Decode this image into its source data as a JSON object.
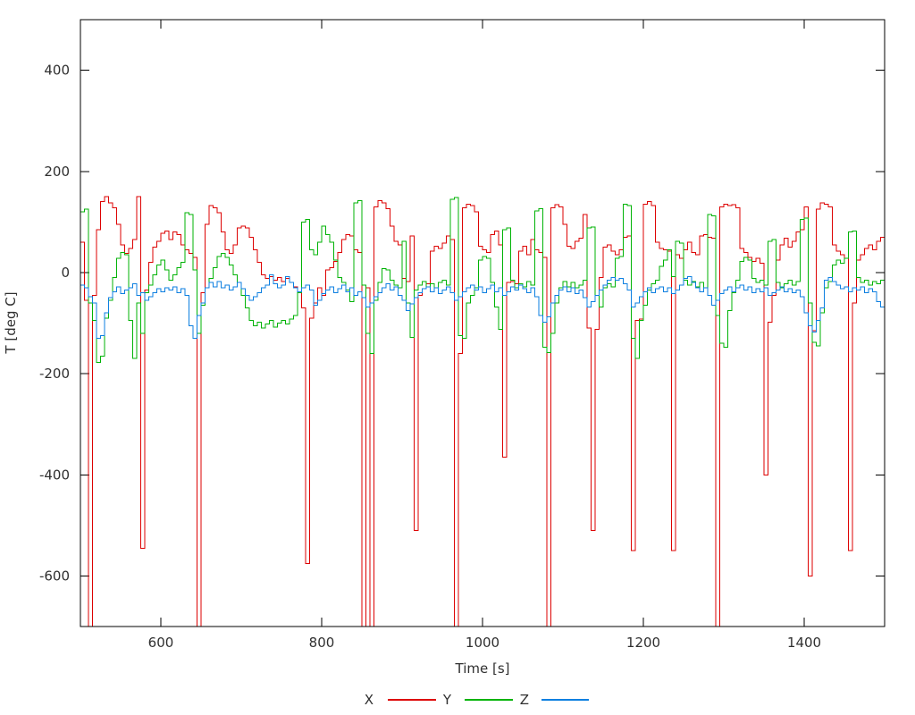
{
  "chart_data": {
    "type": "line",
    "style": "steps",
    "title": "",
    "xlabel": "Time [s]",
    "ylabel": "T [deg C]",
    "xlim": [
      500,
      1500
    ],
    "ylim": [
      -700,
      500
    ],
    "xticks": [
      600,
      800,
      1000,
      1200,
      1400
    ],
    "yticks": [
      -600,
      -400,
      -200,
      0,
      200,
      400
    ],
    "grid": false,
    "legend_position": "bottom-center",
    "background_color": "#ffffff",
    "axis_color": "#000000",
    "text_color": "#303030",
    "x_start": 500,
    "x_step": 5,
    "series": [
      {
        "name": "X",
        "color": "#dd0202",
        "values": [
          60,
          -55,
          -750,
          -45,
          85,
          140,
          150,
          138,
          128,
          95,
          55,
          38,
          48,
          65,
          150,
          -545,
          -35,
          20,
          50,
          62,
          78,
          82,
          65,
          80,
          75,
          55,
          45,
          38,
          30,
          -760,
          -40,
          95,
          132,
          128,
          118,
          80,
          45,
          38,
          55,
          88,
          92,
          88,
          70,
          45,
          20,
          -5,
          -12,
          -8,
          -15,
          -10,
          -18,
          -12,
          -20,
          -28,
          -40,
          -70,
          -575,
          -90,
          -60,
          -30,
          -45,
          5,
          10,
          22,
          40,
          65,
          75,
          72,
          45,
          40,
          -730,
          -30,
          -740,
          130,
          142,
          138,
          126,
          92,
          62,
          55,
          -12,
          -18,
          72,
          -510,
          -45,
          -32,
          -22,
          42,
          52,
          48,
          58,
          72,
          65,
          -720,
          -160,
          128,
          135,
          132,
          120,
          52,
          45,
          40,
          75,
          82,
          55,
          -365,
          -20,
          -18,
          -22,
          42,
          52,
          35,
          65,
          45,
          40,
          30,
          -740,
          128,
          134,
          130,
          95,
          52,
          48,
          62,
          68,
          115,
          -110,
          -510,
          -112,
          -10,
          50,
          55,
          42,
          35,
          45,
          70,
          72,
          -550,
          -95,
          -92,
          135,
          140,
          132,
          60,
          48,
          45,
          42,
          -550,
          35,
          28,
          45,
          60,
          40,
          35,
          72,
          75,
          70,
          68,
          -750,
          130,
          135,
          132,
          134,
          128,
          48,
          40,
          30,
          22,
          28,
          18,
          -400,
          -98,
          -45,
          25,
          55,
          68,
          50,
          62,
          80,
          85,
          130,
          -600,
          -115,
          125,
          138,
          135,
          130,
          55,
          42,
          35,
          28,
          -550,
          -60,
          25,
          35,
          48,
          55,
          45,
          62,
          70,
          75
        ]
      },
      {
        "name": "Y",
        "color": "#00b306",
        "values": [
          120,
          125,
          -60,
          -95,
          -178,
          -165,
          -90,
          -55,
          -10,
          28,
          40,
          35,
          -95,
          -170,
          -60,
          -120,
          -40,
          -25,
          -5,
          15,
          25,
          5,
          -15,
          -5,
          10,
          20,
          118,
          115,
          5,
          -120,
          -65,
          -30,
          -12,
          10,
          32,
          38,
          30,
          15,
          -5,
          -20,
          -45,
          -70,
          -95,
          -105,
          -98,
          -110,
          -102,
          -95,
          -108,
          -100,
          -95,
          -102,
          -92,
          -85,
          -40,
          100,
          105,
          45,
          35,
          60,
          92,
          75,
          60,
          25,
          -10,
          -20,
          -35,
          -58,
          138,
          142,
          -25,
          -120,
          -160,
          -55,
          -20,
          8,
          5,
          -15,
          -25,
          -30,
          62,
          -60,
          -128,
          -35,
          -25,
          -18,
          -28,
          -22,
          -30,
          -20,
          -15,
          -25,
          145,
          148,
          -125,
          -130,
          -60,
          -45,
          -30,
          25,
          32,
          28,
          -20,
          -68,
          -112,
          85,
          88,
          -15,
          -30,
          -22,
          -28,
          -18,
          -25,
          122,
          126,
          -148,
          -158,
          -120,
          -60,
          -30,
          -18,
          -28,
          -20,
          -30,
          -25,
          -15,
          88,
          90,
          -45,
          -68,
          -30,
          -22,
          -28,
          28,
          32,
          135,
          132,
          -130,
          -170,
          -95,
          -65,
          -35,
          -22,
          -15,
          12,
          25,
          45,
          -8,
          62,
          58,
          -15,
          -25,
          -18,
          -28,
          -20,
          -30,
          115,
          112,
          -85,
          -140,
          -148,
          -75,
          -40,
          -15,
          22,
          30,
          25,
          -12,
          -20,
          -15,
          -25,
          62,
          65,
          -20,
          -30,
          -22,
          -15,
          -25,
          -18,
          105,
          108,
          -60,
          -138,
          -145,
          -80,
          -30,
          -18,
          15,
          25,
          18,
          28,
          80,
          82,
          -10,
          -20,
          -15,
          -25,
          -18,
          -22,
          -15,
          -20
        ]
      },
      {
        "name": "Z",
        "color": "#0c7fe0",
        "values": [
          -25,
          -30,
          -48,
          -60,
          -130,
          -125,
          -80,
          -50,
          -38,
          -28,
          -42,
          -35,
          -30,
          -22,
          -45,
          -40,
          -55,
          -48,
          -40,
          -32,
          -38,
          -30,
          -35,
          -28,
          -40,
          -32,
          -45,
          -105,
          -130,
          -85,
          -60,
          -30,
          -20,
          -28,
          -18,
          -30,
          -25,
          -35,
          -28,
          -20,
          -32,
          -45,
          -55,
          -48,
          -40,
          -30,
          -25,
          -5,
          -22,
          -30,
          -25,
          -8,
          -20,
          -30,
          -38,
          -30,
          -25,
          -35,
          -65,
          -55,
          -42,
          -35,
          -28,
          -40,
          -32,
          -25,
          -38,
          -30,
          -45,
          -38,
          -50,
          -68,
          -60,
          -48,
          -40,
          -30,
          -22,
          -35,
          -28,
          -45,
          -55,
          -75,
          -62,
          -50,
          -40,
          -32,
          -28,
          -38,
          -30,
          -42,
          -35,
          -28,
          -40,
          -55,
          -48,
          -38,
          -30,
          -25,
          -35,
          -28,
          -40,
          -32,
          -25,
          -38,
          -30,
          -45,
          -38,
          -28,
          -35,
          -25,
          -32,
          -40,
          -30,
          -48,
          -85,
          -98,
          -88,
          -60,
          -45,
          -35,
          -28,
          -38,
          -30,
          -42,
          -35,
          -50,
          -68,
          -58,
          -45,
          -35,
          -25,
          -15,
          -10,
          -15,
          -12,
          -22,
          -35,
          -68,
          -60,
          -48,
          -38,
          -30,
          -40,
          -32,
          -28,
          -38,
          -30,
          -42,
          -35,
          -25,
          -12,
          -8,
          -20,
          -30,
          -38,
          -30,
          -45,
          -65,
          -55,
          -42,
          -35,
          -28,
          -38,
          -30,
          -25,
          -35,
          -28,
          -40,
          -32,
          -38,
          -30,
          -45,
          -40,
          -35,
          -28,
          -38,
          -32,
          -40,
          -35,
          -48,
          -80,
          -105,
          -118,
          -95,
          -70,
          -15,
          -10,
          -18,
          -25,
          -32,
          -28,
          -38,
          -30,
          -35,
          -28,
          -40,
          -32,
          -38,
          -58,
          -68,
          -75
        ]
      }
    ]
  }
}
